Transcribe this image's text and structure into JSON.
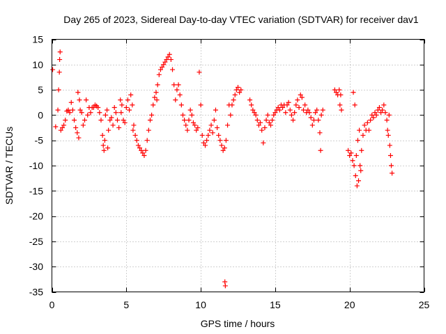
{
  "chart_data": {
    "type": "scatter",
    "title": "Day 265 of 2023, Sidereal Day-to-day VTEC variation (SDTVAR) for receiver dav1",
    "xlabel": "GPS time / hours",
    "ylabel": "SDTVAR / TECUs",
    "xlim": [
      0,
      25
    ],
    "ylim": [
      -35,
      15
    ],
    "xticks": [
      0,
      5,
      10,
      15,
      20,
      25
    ],
    "yticks": [
      15,
      10,
      5,
      0,
      -5,
      -10,
      -15,
      -20,
      -25,
      -30,
      -35
    ],
    "grid": true,
    "marker": "+",
    "color": "#ff0000",
    "series": [
      {
        "name": "dav1",
        "points": [
          [
            0.05,
            9.0
          ],
          [
            0.25,
            -2.3
          ],
          [
            0.4,
            1.0
          ],
          [
            0.45,
            5.0
          ],
          [
            0.5,
            8.5
          ],
          [
            0.52,
            11.0
          ],
          [
            0.55,
            12.5
          ],
          [
            0.6,
            -3.0
          ],
          [
            0.7,
            -2.5
          ],
          [
            0.8,
            -2.0
          ],
          [
            0.9,
            -1.0
          ],
          [
            1.0,
            0.8
          ],
          [
            1.1,
            1.0
          ],
          [
            1.2,
            0.5
          ],
          [
            1.3,
            2.5
          ],
          [
            1.4,
            1.0
          ],
          [
            1.5,
            -1.0
          ],
          [
            1.6,
            -2.5
          ],
          [
            1.7,
            -3.5
          ],
          [
            1.75,
            4.5
          ],
          [
            1.8,
            -4.5
          ],
          [
            1.85,
            3.0
          ],
          [
            1.9,
            1.0
          ],
          [
            2.0,
            0.5
          ],
          [
            2.1,
            -2.0
          ],
          [
            2.2,
            -1.0
          ],
          [
            2.3,
            3.0
          ],
          [
            2.4,
            0.0
          ],
          [
            2.5,
            1.5
          ],
          [
            2.6,
            0.5
          ],
          [
            2.7,
            1.5
          ],
          [
            2.8,
            1.5
          ],
          [
            2.9,
            2.0
          ],
          [
            3.0,
            1.8
          ],
          [
            3.1,
            1.5
          ],
          [
            3.2,
            0.5
          ],
          [
            3.3,
            -1.0
          ],
          [
            3.4,
            -4.0
          ],
          [
            3.45,
            -6.0
          ],
          [
            3.5,
            -7.0
          ],
          [
            3.55,
            -5.0
          ],
          [
            3.6,
            0.0
          ],
          [
            3.7,
            1.0
          ],
          [
            3.75,
            -6.5
          ],
          [
            3.8,
            -3.0
          ],
          [
            3.9,
            -1.0
          ],
          [
            4.0,
            -0.5
          ],
          [
            4.1,
            -2.0
          ],
          [
            4.2,
            1.5
          ],
          [
            4.3,
            0.5
          ],
          [
            4.4,
            -1.0
          ],
          [
            4.5,
            -2.5
          ],
          [
            4.6,
            3.0
          ],
          [
            4.65,
            0.5
          ],
          [
            4.7,
            2.0
          ],
          [
            4.8,
            -1.0
          ],
          [
            4.9,
            -1.5
          ],
          [
            5.0,
            1.5
          ],
          [
            5.1,
            3.0
          ],
          [
            5.2,
            1.0
          ],
          [
            5.3,
            4.0
          ],
          [
            5.4,
            2.0
          ],
          [
            5.45,
            -3.0
          ],
          [
            5.5,
            -2.0
          ],
          [
            5.6,
            -4.0
          ],
          [
            5.7,
            -5.0
          ],
          [
            5.8,
            -6.0
          ],
          [
            5.9,
            -6.5
          ],
          [
            6.0,
            -7.0
          ],
          [
            6.1,
            -7.5
          ],
          [
            6.2,
            -8.0
          ],
          [
            6.3,
            -7.0
          ],
          [
            6.4,
            -5.0
          ],
          [
            6.5,
            -3.0
          ],
          [
            6.6,
            -1.0
          ],
          [
            6.7,
            0.0
          ],
          [
            6.8,
            2.0
          ],
          [
            6.9,
            3.5
          ],
          [
            7.0,
            4.5
          ],
          [
            7.05,
            3.0
          ],
          [
            7.1,
            6.0
          ],
          [
            7.2,
            8.0
          ],
          [
            7.3,
            9.0
          ],
          [
            7.4,
            9.5
          ],
          [
            7.5,
            10.0
          ],
          [
            7.6,
            10.5
          ],
          [
            7.7,
            11.0
          ],
          [
            7.8,
            11.5
          ],
          [
            7.9,
            12.0
          ],
          [
            8.0,
            11.0
          ],
          [
            8.1,
            9.0
          ],
          [
            8.2,
            6.0
          ],
          [
            8.3,
            3.0
          ],
          [
            8.4,
            5.0
          ],
          [
            8.5,
            6.0
          ],
          [
            8.6,
            4.0
          ],
          [
            8.7,
            2.0
          ],
          [
            8.8,
            0.0
          ],
          [
            8.9,
            -1.0
          ],
          [
            9.0,
            -2.0
          ],
          [
            9.1,
            -3.0
          ],
          [
            9.2,
            -1.0
          ],
          [
            9.3,
            1.0
          ],
          [
            9.4,
            0.0
          ],
          [
            9.5,
            -1.5
          ],
          [
            9.6,
            -2.0
          ],
          [
            9.7,
            -3.0
          ],
          [
            9.8,
            -2.5
          ],
          [
            9.9,
            8.5
          ],
          [
            10.0,
            2.0
          ],
          [
            10.1,
            -4.0
          ],
          [
            10.2,
            -5.5
          ],
          [
            10.3,
            -6.0
          ],
          [
            10.4,
            -5.0
          ],
          [
            10.5,
            -4.0
          ],
          [
            10.6,
            -3.0
          ],
          [
            10.7,
            -2.0
          ],
          [
            10.8,
            -3.5
          ],
          [
            10.9,
            -1.0
          ],
          [
            11.0,
            1.0
          ],
          [
            11.1,
            -2.5
          ],
          [
            11.2,
            -4.0
          ],
          [
            11.3,
            -5.0
          ],
          [
            11.4,
            -6.0
          ],
          [
            11.5,
            -7.0
          ],
          [
            11.6,
            -6.5
          ],
          [
            11.62,
            -33.0
          ],
          [
            11.65,
            -33.8
          ],
          [
            11.7,
            -5.0
          ],
          [
            11.8,
            -2.0
          ],
          [
            11.9,
            2.0
          ],
          [
            12.0,
            0.0
          ],
          [
            12.1,
            2.0
          ],
          [
            12.2,
            3.0
          ],
          [
            12.3,
            4.0
          ],
          [
            12.4,
            5.0
          ],
          [
            12.5,
            5.5
          ],
          [
            12.6,
            4.5
          ],
          [
            12.7,
            5.0
          ],
          [
            13.3,
            3.0
          ],
          [
            13.4,
            2.0
          ],
          [
            13.5,
            1.0
          ],
          [
            13.6,
            0.5
          ],
          [
            13.7,
            0.0
          ],
          [
            13.8,
            -1.0
          ],
          [
            13.9,
            -2.0
          ],
          [
            14.0,
            -1.5
          ],
          [
            14.1,
            -3.0
          ],
          [
            14.2,
            -5.5
          ],
          [
            14.3,
            -2.5
          ],
          [
            14.4,
            -1.0
          ],
          [
            14.5,
            0.0
          ],
          [
            14.6,
            -1.5
          ],
          [
            14.7,
            -2.0
          ],
          [
            14.8,
            -1.0
          ],
          [
            14.9,
            0.0
          ],
          [
            15.0,
            0.5
          ],
          [
            15.1,
            1.0
          ],
          [
            15.2,
            1.5
          ],
          [
            15.3,
            1.0
          ],
          [
            15.4,
            2.0
          ],
          [
            15.5,
            1.5
          ],
          [
            15.6,
            2.0
          ],
          [
            15.7,
            0.5
          ],
          [
            15.8,
            2.0
          ],
          [
            15.9,
            2.5
          ],
          [
            16.0,
            1.0
          ],
          [
            16.1,
            0.0
          ],
          [
            16.2,
            -1.0
          ],
          [
            16.3,
            0.5
          ],
          [
            16.4,
            2.0
          ],
          [
            16.5,
            3.0
          ],
          [
            16.6,
            1.5
          ],
          [
            16.7,
            4.0
          ],
          [
            16.8,
            3.5
          ],
          [
            16.9,
            1.0
          ],
          [
            17.0,
            2.0
          ],
          [
            17.1,
            0.5
          ],
          [
            17.2,
            1.0
          ],
          [
            17.3,
            0.5
          ],
          [
            17.4,
            -0.5
          ],
          [
            17.5,
            -2.0
          ],
          [
            17.6,
            -1.0
          ],
          [
            17.7,
            0.5
          ],
          [
            17.8,
            1.0
          ],
          [
            17.9,
            -1.0
          ],
          [
            18.0,
            -3.5
          ],
          [
            18.05,
            -7.0
          ],
          [
            18.1,
            0.0
          ],
          [
            18.2,
            1.0
          ],
          [
            19.0,
            5.0
          ],
          [
            19.1,
            4.5
          ],
          [
            19.2,
            4.0
          ],
          [
            19.3,
            5.0
          ],
          [
            19.35,
            2.0
          ],
          [
            19.4,
            4.0
          ],
          [
            19.45,
            1.0
          ],
          [
            19.9,
            -7.0
          ],
          [
            20.0,
            -8.0
          ],
          [
            20.1,
            -7.5
          ],
          [
            20.2,
            -9.0
          ],
          [
            20.25,
            4.5
          ],
          [
            20.3,
            -10.0
          ],
          [
            20.35,
            2.0
          ],
          [
            20.4,
            -12.0
          ],
          [
            20.45,
            -8.0
          ],
          [
            20.5,
            -14.0
          ],
          [
            20.55,
            -5.0
          ],
          [
            20.6,
            -13.0
          ],
          [
            20.65,
            -3.0
          ],
          [
            20.7,
            -10.0
          ],
          [
            20.75,
            -11.0
          ],
          [
            20.8,
            -7.0
          ],
          [
            20.9,
            -4.0
          ],
          [
            21.0,
            -2.0
          ],
          [
            21.1,
            -3.0
          ],
          [
            21.2,
            -1.5
          ],
          [
            21.3,
            -3.0
          ],
          [
            21.4,
            -1.0
          ],
          [
            21.5,
            0.0
          ],
          [
            21.6,
            -0.5
          ],
          [
            21.7,
            0.5
          ],
          [
            21.8,
            0.0
          ],
          [
            21.9,
            1.0
          ],
          [
            22.0,
            1.5
          ],
          [
            22.1,
            0.5
          ],
          [
            22.2,
            1.0
          ],
          [
            22.3,
            2.0
          ],
          [
            22.4,
            0.5
          ],
          [
            22.5,
            -1.0
          ],
          [
            22.55,
            -3.0
          ],
          [
            22.6,
            -4.0
          ],
          [
            22.65,
            0.0
          ],
          [
            22.7,
            -6.0
          ],
          [
            22.75,
            -8.0
          ],
          [
            22.8,
            -10.0
          ],
          [
            22.85,
            -11.5
          ]
        ]
      }
    ]
  }
}
